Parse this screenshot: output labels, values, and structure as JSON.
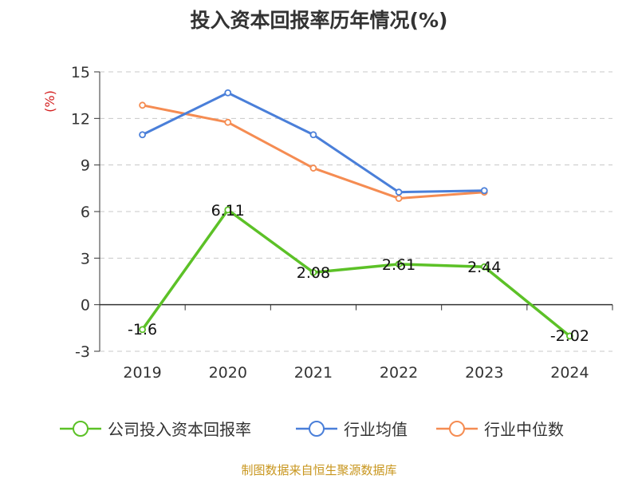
{
  "chart_data": {
    "type": "line",
    "title": "投入资本回报率历年情况(%)",
    "ylabel": "(%)",
    "categories": [
      "2019",
      "2020",
      "2021",
      "2022",
      "2023",
      "2024"
    ],
    "ylim": [
      -3,
      15
    ],
    "yticks": [
      -3,
      0,
      3,
      6,
      9,
      12,
      15
    ],
    "grid": true,
    "legend_position": "bottom",
    "series": [
      {
        "name": "公司投入资本回报率",
        "color": "#5cc127",
        "values": [
          -1.6,
          6.11,
          2.08,
          2.61,
          2.44,
          -2.02
        ],
        "labels": [
          "-1.6",
          "6.11",
          "2.08",
          "2.61",
          "2.44",
          "-2.02"
        ],
        "show_labels": true
      },
      {
        "name": "行业均值",
        "color": "#4a7fd9",
        "values": [
          10.95,
          13.65,
          10.95,
          7.25,
          7.35,
          null
        ],
        "show_labels": false
      },
      {
        "name": "行业中位数",
        "color": "#f58c52",
        "values": [
          12.85,
          11.75,
          8.8,
          6.85,
          7.25,
          null
        ],
        "show_labels": false
      }
    ]
  },
  "source_note": "制图数据来自恒生聚源数据库"
}
